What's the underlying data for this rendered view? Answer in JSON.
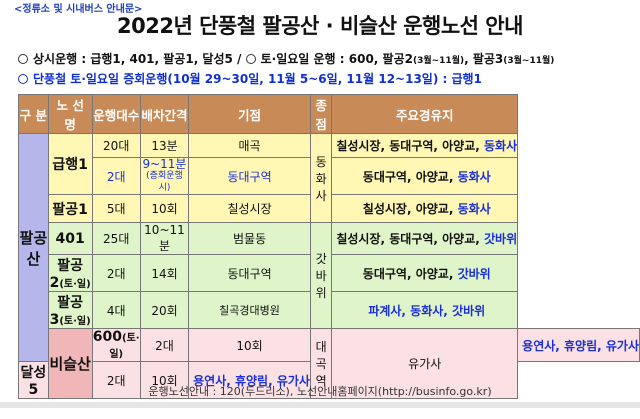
{
  "tag": "<정류소 및 시내버스 안내문>",
  "title": "2022년 단풍철 팔공산 · 비슬산 운행노선 안내",
  "notes": {
    "n1_a": "상시운행 : 급행1, 401, 팔공1, 달성5 / ",
    "n1_b": "토·일요일 운행 : 600, 팔공2",
    "n1_c": "(3월~11월)",
    "n1_d": ", 팔공3",
    "n1_e": "(3월~11월)",
    "n2": "단풍철 토·일요일 증회운행(10월 29~30일, 11월 5~6일, 11월 12~13일) : 급행1"
  },
  "headers": [
    "구 분",
    "노 선 명",
    "운행대수",
    "배차간격",
    "기점",
    "종점",
    "주요경유지"
  ],
  "groups": {
    "palgong": "팔공산",
    "biseul": "비슬산"
  },
  "rows": {
    "r1": {
      "route": "급행1",
      "buses_a": "20대",
      "interval_a": "13분",
      "start_a": "매곡",
      "buses_b": "2대",
      "interval_b": "9~11분",
      "interval_b_sub": "(증회운행시)",
      "start_b": "동대구역",
      "end": "동화사",
      "stops_a_dark": "칠성시장, 동대구역, 아양교, ",
      "stops_a_blue": "동화사",
      "stops_b_dark": "동대구역, 아양교, ",
      "stops_b_blue": "동화사"
    },
    "r2": {
      "route": "팔공1",
      "buses": "5대",
      "interval": "10회",
      "start": "칠성시장",
      "stops_dark": "칠성시장, 아양교, ",
      "stops_blue": "동화사"
    },
    "r3": {
      "route": "401",
      "buses": "25대",
      "interval": "10~11분",
      "start": "범물동",
      "end": "갓바위",
      "stops_dark": "칠성시장, 동대구역, 아양교, ",
      "stops_blue": "갓바위"
    },
    "r4": {
      "route": "팔공2",
      "route_sub": "(토·일)",
      "buses": "2대",
      "interval": "14회",
      "start": "동대구역",
      "stops_dark": "동대구역, 아양교, ",
      "stops_blue": "갓바위"
    },
    "r5": {
      "route": "팔공3",
      "route_sub": "(토·일)",
      "buses": "4대",
      "interval": "20회",
      "start": "칠곡경대병원",
      "stops_blue": "파계사, 동화사, 갓바위"
    },
    "r6": {
      "route": "600",
      "route_sub": "(토·일)",
      "buses": "2대",
      "interval": "10회",
      "start": "대곡역",
      "end": "유가사",
      "stops_blue": "용연사, 휴양림, 유가사"
    },
    "r7": {
      "route": "달성5",
      "buses": "2대",
      "interval": "10회",
      "stops_blue": "용연사, 휴양림, 유가사"
    }
  },
  "footer": "운행노선안내 : 120(두드리소), 노선안내홈페이지(http://businfo.go.kr)"
}
